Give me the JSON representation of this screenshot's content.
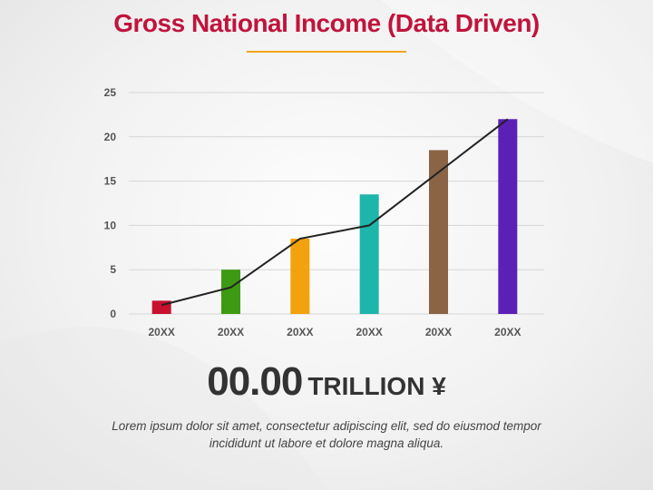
{
  "title": "Gross National Income (Data Driven)",
  "colors": {
    "title": "#c0143c",
    "accent_rule": "#f0a41c",
    "trend_line": "#222222"
  },
  "chart_data": {
    "type": "bar",
    "categories": [
      "20XX",
      "20XX",
      "20XX",
      "20XX",
      "20XX",
      "20XX"
    ],
    "values": [
      1.5,
      5,
      8.5,
      13.5,
      18.5,
      22
    ],
    "bar_colors": [
      "#c8102e",
      "#3d9a12",
      "#f2a20c",
      "#1eb5ab",
      "#8b6446",
      "#5b21b6"
    ],
    "trend_line": [
      1,
      3,
      8.5,
      10,
      16,
      22
    ],
    "yticks": [
      0,
      5,
      10,
      15,
      20,
      25
    ],
    "ylim": [
      0,
      25
    ],
    "grid": true,
    "legend": "none"
  },
  "headline": {
    "value": "00.00",
    "unit": "TRILLION ¥"
  },
  "description": "Lorem ipsum dolor sit amet, consectetur adipiscing elit, sed do eiusmod tempor incididunt ut labore et dolore magna aliqua."
}
